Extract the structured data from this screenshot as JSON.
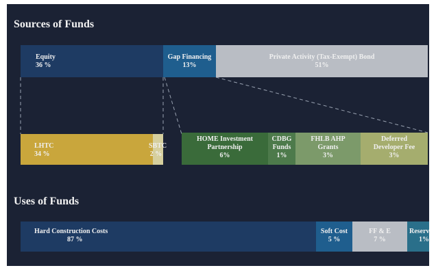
{
  "sources": {
    "title": "Sources of Funds",
    "top_row": [
      {
        "label": "Equity",
        "pct": "36 %",
        "value": 36,
        "color": "#1e3b63"
      },
      {
        "label": "Gap Financing",
        "pct": "13%",
        "value": 13,
        "color": "#1f5e8e"
      },
      {
        "label": "Private Activity (Tax-Exempt) Bond",
        "pct": "51%",
        "value": 51,
        "color": "#b9bdc4"
      }
    ],
    "equity_breakdown": [
      {
        "label": "LHTC",
        "pct": "34 %",
        "value": 34,
        "color": "#c9a63c"
      },
      {
        "label": "SBTC",
        "pct": "2 %",
        "value": 2,
        "color": "#d6cf9e"
      }
    ],
    "gap_breakdown": [
      {
        "label": "HOME Investment\nPartnership",
        "pct": "6%",
        "value": 6,
        "color": "#3a6b3a"
      },
      {
        "label": "CDBG\nFunds",
        "pct": "1%",
        "value": 1,
        "color": "#4d7a4b"
      },
      {
        "label": "FHLB AHP\nGrants",
        "pct": "3%",
        "value": 3,
        "color": "#7c9a6a"
      },
      {
        "label": "Deferred\nDeveloper Fee",
        "pct": "3%",
        "value": 3,
        "color": "#a5ad6e"
      }
    ]
  },
  "uses": {
    "title": "Uses of Funds",
    "row": [
      {
        "label": "Hard Construction Costs",
        "pct": "87 %",
        "value": 87,
        "color": "#1e3b63"
      },
      {
        "label": "Soft Cost",
        "pct": "5 %",
        "value": 5,
        "color": "#1f5e8e"
      },
      {
        "label": "FF & E",
        "pct": "7 %",
        "value": 7,
        "color": "#b9bdc4"
      },
      {
        "label": "Reserves",
        "pct": "1%",
        "value": 1,
        "color": "#2a6f8a"
      }
    ]
  }
}
